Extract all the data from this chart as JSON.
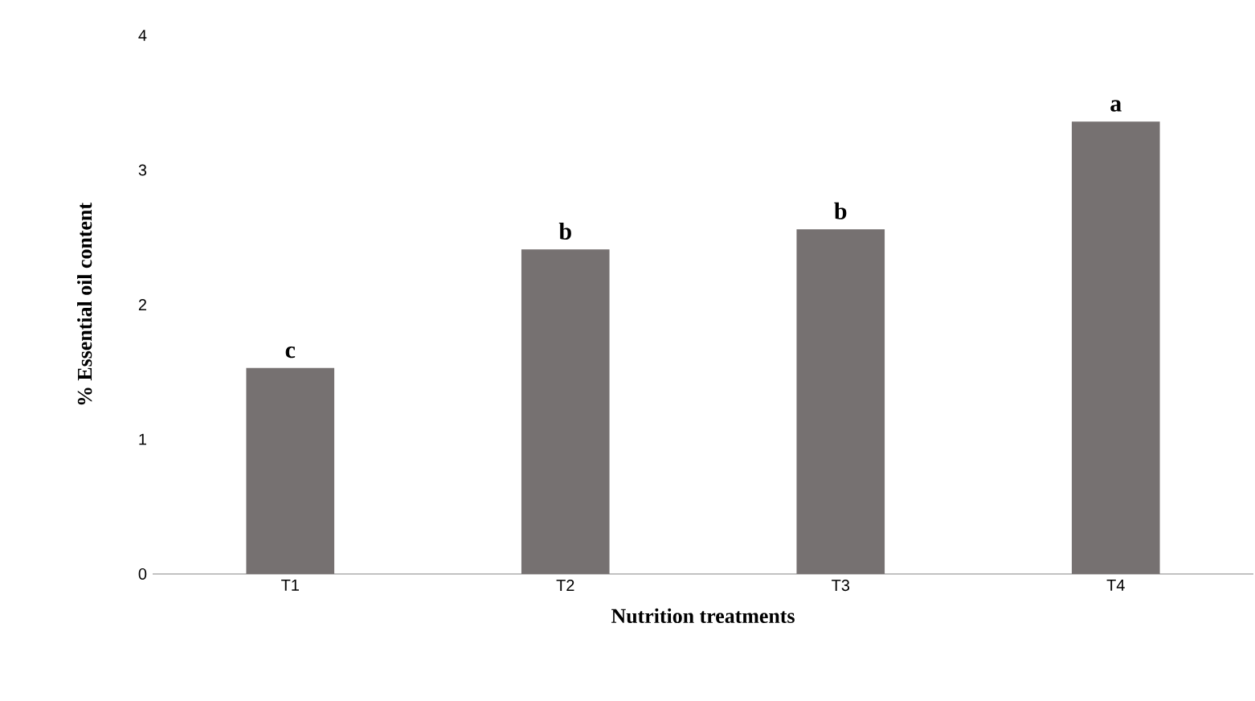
{
  "chart_data": {
    "type": "bar",
    "xlabel": "Nutrition treatments",
    "ylabel": "% Essential oil content",
    "categories": [
      "T1",
      "T2",
      "T3",
      "T4"
    ],
    "values": [
      1.53,
      2.41,
      2.56,
      3.36
    ],
    "color": "#767171",
    "ylim": [
      0,
      4
    ],
    "yticks": [
      0,
      1,
      2,
      3,
      4
    ],
    "grid": false,
    "annotations": [
      {
        "text": "c",
        "x": "T1",
        "y": 1.53
      },
      {
        "text": "b",
        "x": "T2",
        "y": 2.41
      },
      {
        "text": "b",
        "x": "T3",
        "y": 2.56
      },
      {
        "text": "a",
        "x": "T4",
        "y": 3.36
      }
    ]
  }
}
